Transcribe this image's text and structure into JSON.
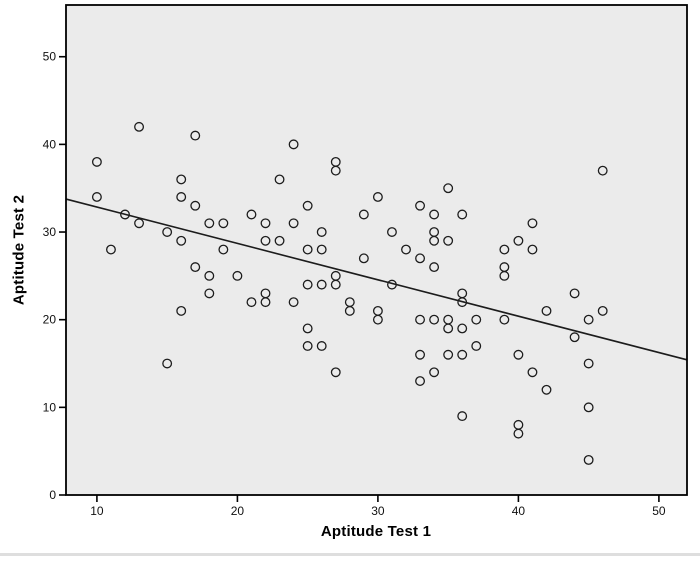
{
  "figure": {
    "x_axis_title": "Aptitude Test 1",
    "y_axis_title": "Aptitude Test 2"
  },
  "chart_data": {
    "type": "scatter",
    "title": "",
    "xlabel": "Aptitude Test 1",
    "ylabel": "Aptitude Test 2",
    "xlim": [
      7.8,
      52.0
    ],
    "ylim": [
      0,
      55.9
    ],
    "x_ticks": [
      10,
      20,
      30,
      40,
      50
    ],
    "y_ticks": [
      0,
      10,
      20,
      30,
      40,
      50
    ],
    "grid": false,
    "legend": false,
    "marker": {
      "shape": "open-circle",
      "radius_px": 4.3,
      "stroke_px": 1.3
    },
    "colors": {
      "figure_bg": "#ffffff",
      "plot_bg": "#ebebeb",
      "frame": "#000000",
      "marker": "#1c1c1c",
      "fit_line": "#1c1c1c",
      "tick_text": "#111111"
    },
    "fit_line": {
      "type": "linear",
      "slope": -0.415,
      "intercept": 37.0
    },
    "points": [
      [
        13,
        42
      ],
      [
        17,
        41
      ],
      [
        24,
        40
      ],
      [
        10,
        38
      ],
      [
        27,
        38
      ],
      [
        27,
        37
      ],
      [
        46,
        37
      ],
      [
        16,
        36
      ],
      [
        23,
        36
      ],
      [
        35,
        35
      ],
      [
        10,
        34
      ],
      [
        16,
        34
      ],
      [
        30,
        34
      ],
      [
        17,
        33
      ],
      [
        25,
        33
      ],
      [
        33,
        33
      ],
      [
        12,
        32
      ],
      [
        21,
        32
      ],
      [
        29,
        32
      ],
      [
        34,
        32
      ],
      [
        36,
        32
      ],
      [
        13,
        31
      ],
      [
        18,
        31
      ],
      [
        19,
        31
      ],
      [
        22,
        31
      ],
      [
        24,
        31
      ],
      [
        41,
        31
      ],
      [
        15,
        30
      ],
      [
        26,
        30
      ],
      [
        31,
        30
      ],
      [
        34,
        30
      ],
      [
        16,
        29
      ],
      [
        22,
        29
      ],
      [
        23,
        29
      ],
      [
        34,
        29
      ],
      [
        35,
        29
      ],
      [
        40,
        29
      ],
      [
        11,
        28
      ],
      [
        19,
        28
      ],
      [
        25,
        28
      ],
      [
        26,
        28
      ],
      [
        32,
        28
      ],
      [
        39,
        28
      ],
      [
        41,
        28
      ],
      [
        29,
        27
      ],
      [
        33,
        27
      ],
      [
        17,
        26
      ],
      [
        34,
        26
      ],
      [
        39,
        26
      ],
      [
        18,
        25
      ],
      [
        20,
        25
      ],
      [
        27,
        25
      ],
      [
        39,
        25
      ],
      [
        25,
        24
      ],
      [
        26,
        24
      ],
      [
        27,
        24
      ],
      [
        31,
        24
      ],
      [
        18,
        23
      ],
      [
        22,
        23
      ],
      [
        36,
        23
      ],
      [
        44,
        23
      ],
      [
        21,
        22
      ],
      [
        22,
        22
      ],
      [
        24,
        22
      ],
      [
        28,
        22
      ],
      [
        36,
        22
      ],
      [
        16,
        21
      ],
      [
        28,
        21
      ],
      [
        30,
        21
      ],
      [
        42,
        21
      ],
      [
        46,
        21
      ],
      [
        30,
        20
      ],
      [
        33,
        20
      ],
      [
        34,
        20
      ],
      [
        35,
        20
      ],
      [
        37,
        20
      ],
      [
        39,
        20
      ],
      [
        45,
        20
      ],
      [
        25,
        19
      ],
      [
        35,
        19
      ],
      [
        36,
        19
      ],
      [
        44,
        18
      ],
      [
        25,
        17
      ],
      [
        26,
        17
      ],
      [
        37,
        17
      ],
      [
        33,
        16
      ],
      [
        35,
        16
      ],
      [
        36,
        16
      ],
      [
        40,
        16
      ],
      [
        15,
        15
      ],
      [
        45,
        15
      ],
      [
        27,
        14
      ],
      [
        34,
        14
      ],
      [
        41,
        14
      ],
      [
        33,
        13
      ],
      [
        42,
        12
      ],
      [
        45,
        10
      ],
      [
        36,
        9
      ],
      [
        40,
        8
      ],
      [
        40,
        7
      ],
      [
        45,
        4
      ]
    ]
  }
}
